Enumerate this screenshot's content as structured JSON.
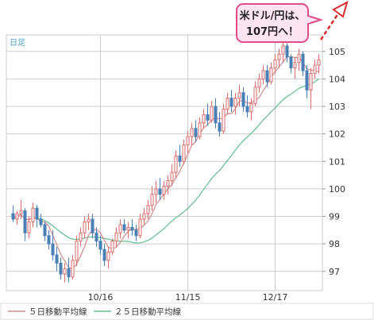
{
  "timeframe_label": "日足",
  "callout": {
    "line1": "米ドル/円は、",
    "line2": "107円へ！"
  },
  "legend": [
    {
      "label": "５日移動平均線",
      "color": "#d08a8a"
    },
    {
      "label": "２５日移動平均線",
      "color": "#5fbf8f"
    }
  ],
  "colors": {
    "up": "#d96b6b",
    "down": "#4a7fb5",
    "up_fill": "#ffffff",
    "grid": "#cccccc",
    "callout_fill": "#fce4f0",
    "callout_border": "#e24b8a",
    "arrow": "#d62e2e"
  },
  "chart_data": {
    "type": "candlestick",
    "title": "",
    "xlabel": "",
    "ylabel": "",
    "ylim": [
      96.3,
      105.6
    ],
    "y_ticks": [
      97,
      98,
      99,
      100,
      101,
      102,
      103,
      104,
      105
    ],
    "x_ticks": [
      {
        "label": "10/16",
        "index": 22
      },
      {
        "label": "11/15",
        "index": 44
      },
      {
        "label": "12/17",
        "index": 66
      }
    ],
    "grid": true,
    "ohlc": [
      [
        99.1,
        99.4,
        98.8,
        98.9
      ],
      [
        98.9,
        99.2,
        98.7,
        99.1
      ],
      [
        99.1,
        99.6,
        98.9,
        99.2
      ],
      [
        99.2,
        99.3,
        98.1,
        98.4
      ],
      [
        98.4,
        99.0,
        98.2,
        98.8
      ],
      [
        98.8,
        99.5,
        98.6,
        99.3
      ],
      [
        99.3,
        99.4,
        98.6,
        98.9
      ],
      [
        98.9,
        99.1,
        98.6,
        98.7
      ],
      [
        98.7,
        98.8,
        98.1,
        98.3
      ],
      [
        98.3,
        98.5,
        97.8,
        98.0
      ],
      [
        98.0,
        98.5,
        97.4,
        97.6
      ],
      [
        97.6,
        97.9,
        97.0,
        97.3
      ],
      [
        97.3,
        97.5,
        96.7,
        96.9
      ],
      [
        96.9,
        97.3,
        96.6,
        97.1
      ],
      [
        97.1,
        97.5,
        96.6,
        96.8
      ],
      [
        96.8,
        97.6,
        96.7,
        97.4
      ],
      [
        97.4,
        98.3,
        97.2,
        98.1
      ],
      [
        98.1,
        98.6,
        97.9,
        98.4
      ],
      [
        98.4,
        99.0,
        98.2,
        98.8
      ],
      [
        98.8,
        99.1,
        98.5,
        98.9
      ],
      [
        98.9,
        99.1,
        98.2,
        98.4
      ],
      [
        98.4,
        98.6,
        97.9,
        98.1
      ],
      [
        98.1,
        98.3,
        97.6,
        97.8
      ],
      [
        97.8,
        98.0,
        97.2,
        97.4
      ],
      [
        97.4,
        97.9,
        97.1,
        97.7
      ],
      [
        97.7,
        98.2,
        97.6,
        98.1
      ],
      [
        98.1,
        98.6,
        97.9,
        98.4
      ],
      [
        98.4,
        98.9,
        98.2,
        98.7
      ],
      [
        98.7,
        98.9,
        98.4,
        98.5
      ],
      [
        98.5,
        98.8,
        98.2,
        98.6
      ],
      [
        98.6,
        98.9,
        98.3,
        98.5
      ],
      [
        98.5,
        98.7,
        98.1,
        98.3
      ],
      [
        98.3,
        99.1,
        98.2,
        98.9
      ],
      [
        98.9,
        99.3,
        98.7,
        99.1
      ],
      [
        99.1,
        99.6,
        98.9,
        99.4
      ],
      [
        99.4,
        100.1,
        99.2,
        99.8
      ],
      [
        99.8,
        100.3,
        99.5,
        100.0
      ],
      [
        100.0,
        100.4,
        99.6,
        99.8
      ],
      [
        99.8,
        100.3,
        99.6,
        100.1
      ],
      [
        100.1,
        100.5,
        99.8,
        100.3
      ],
      [
        100.3,
        100.9,
        100.1,
        100.6
      ],
      [
        100.6,
        101.4,
        100.4,
        101.2
      ],
      [
        101.2,
        101.6,
        100.8,
        101.0
      ],
      [
        101.0,
        101.8,
        100.9,
        101.6
      ],
      [
        101.6,
        102.1,
        101.3,
        101.9
      ],
      [
        101.9,
        102.4,
        101.6,
        102.2
      ],
      [
        102.2,
        102.5,
        101.7,
        101.9
      ],
      [
        101.9,
        102.6,
        101.8,
        102.4
      ],
      [
        102.4,
        102.9,
        102.2,
        102.7
      ],
      [
        102.7,
        103.1,
        102.3,
        102.5
      ],
      [
        102.5,
        103.2,
        102.4,
        103.0
      ],
      [
        103.0,
        103.3,
        102.2,
        102.4
      ],
      [
        102.4,
        102.8,
        101.9,
        102.1
      ],
      [
        102.1,
        103.1,
        102.0,
        102.9
      ],
      [
        102.9,
        103.5,
        102.7,
        103.3
      ],
      [
        103.3,
        103.6,
        102.8,
        103.0
      ],
      [
        103.0,
        103.5,
        102.7,
        103.3
      ],
      [
        103.3,
        103.8,
        103.0,
        103.5
      ],
      [
        103.5,
        103.7,
        102.8,
        103.0
      ],
      [
        103.0,
        103.4,
        102.6,
        102.8
      ],
      [
        102.8,
        103.3,
        102.5,
        103.1
      ],
      [
        103.1,
        103.9,
        103.0,
        103.7
      ],
      [
        103.7,
        104.2,
        103.5,
        104.0
      ],
      [
        104.0,
        104.5,
        103.8,
        104.3
      ],
      [
        104.3,
        104.5,
        103.7,
        103.9
      ],
      [
        103.9,
        104.6,
        103.8,
        104.4
      ],
      [
        104.4,
        104.9,
        104.2,
        104.7
      ],
      [
        104.7,
        105.1,
        104.4,
        104.9
      ],
      [
        104.9,
        105.4,
        104.6,
        105.2
      ],
      [
        105.2,
        105.3,
        104.6,
        104.8
      ],
      [
        104.8,
        104.9,
        104.2,
        104.4
      ],
      [
        104.4,
        104.8,
        104.0,
        104.6
      ],
      [
        104.6,
        105.1,
        104.3,
        104.9
      ],
      [
        104.9,
        105.0,
        104.1,
        104.3
      ],
      [
        104.3,
        104.5,
        103.3,
        103.6
      ],
      [
        103.6,
        104.4,
        102.9,
        104.2
      ],
      [
        104.2,
        104.7,
        104.0,
        104.5
      ],
      [
        104.5,
        104.9,
        104.2,
        104.7
      ]
    ],
    "series": [
      {
        "name": "５日移動平均線"
      },
      {
        "name": "２５日移動平均線"
      }
    ]
  }
}
